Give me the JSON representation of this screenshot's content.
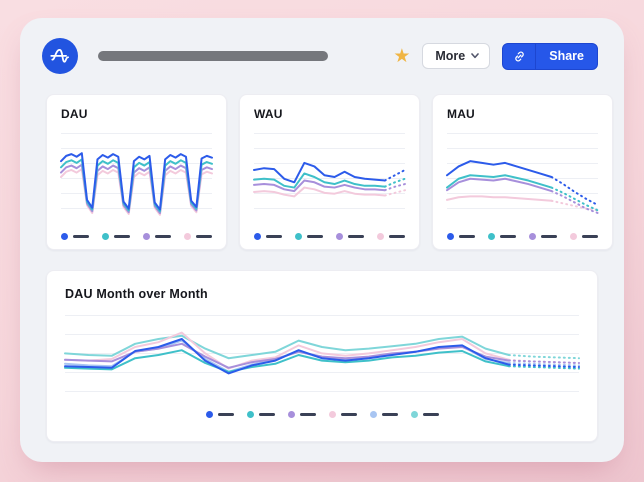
{
  "header": {
    "app_logo": "amplitude-logo",
    "title_placeholder": "redacted-title-bar",
    "star_icon": "★",
    "more_button": {
      "label": "More"
    },
    "share_button": {
      "label": "Share",
      "icon": "link-icon"
    }
  },
  "colors": {
    "accent_blue": "#2c5bea",
    "teal": "#3fc0c9",
    "purple": "#a78fdb",
    "pink": "#f3cadc",
    "light_blue": "#a8c5f2",
    "aqua": "#7fd6d9",
    "star_gold": "#f0b544",
    "share_blue": "#2657e9",
    "page_pink": "#f7d9dd",
    "panel_gray": "#f0f2f6",
    "legend_dash": "#3a4156"
  },
  "chart_data": [
    {
      "type": "line",
      "title": "DAU",
      "xlabel": "",
      "ylabel": "",
      "ylim": [
        0,
        100
      ],
      "grid": true,
      "legend_position": "bottom",
      "dotted_from": null,
      "series": [
        {
          "name": "series-1",
          "color": "#2c5bea",
          "values": [
            68,
            74,
            76,
            73,
            77,
            24,
            15,
            70,
            75,
            72,
            76,
            73,
            22,
            14,
            68,
            73,
            70,
            74,
            21,
            13,
            70,
            75,
            72,
            76,
            73,
            23,
            16,
            71,
            74,
            72
          ]
        },
        {
          "name": "series-2",
          "color": "#3fc0c9",
          "values": [
            61,
            67,
            69,
            66,
            70,
            22,
            13,
            63,
            68,
            65,
            69,
            66,
            20,
            12,
            61,
            66,
            63,
            67,
            19,
            11,
            63,
            68,
            65,
            69,
            66,
            21,
            14,
            64,
            67,
            65
          ]
        },
        {
          "name": "series-3",
          "color": "#a78fdb",
          "values": [
            55,
            61,
            63,
            60,
            64,
            20,
            11,
            57,
            62,
            59,
            63,
            60,
            18,
            10,
            55,
            60,
            57,
            61,
            17,
            9,
            57,
            62,
            59,
            63,
            60,
            19,
            12,
            58,
            61,
            59
          ]
        },
        {
          "name": "series-4",
          "color": "#f3cadc",
          "values": [
            50,
            56,
            58,
            55,
            59,
            18,
            9,
            52,
            57,
            54,
            58,
            55,
            16,
            8,
            50,
            55,
            52,
            56,
            15,
            7,
            52,
            57,
            54,
            58,
            55,
            17,
            10,
            53,
            56,
            54
          ]
        }
      ]
    },
    {
      "type": "line",
      "title": "WAU",
      "xlabel": "",
      "ylabel": "",
      "ylim": [
        0,
        100
      ],
      "grid": true,
      "legend_position": "bottom",
      "dotted_from": 13,
      "series": [
        {
          "name": "series-1",
          "color": "#2c5bea",
          "values": [
            58,
            60,
            59,
            48,
            44,
            66,
            62,
            52,
            50,
            56,
            50,
            48,
            47,
            46,
            52,
            58
          ]
        },
        {
          "name": "series-2",
          "color": "#3fc0c9",
          "values": [
            47,
            48,
            47,
            40,
            38,
            54,
            50,
            44,
            42,
            46,
            42,
            40,
            40,
            39,
            44,
            48
          ]
        },
        {
          "name": "series-3",
          "color": "#a78fdb",
          "values": [
            41,
            42,
            41,
            36,
            34,
            46,
            44,
            39,
            38,
            41,
            38,
            36,
            36,
            35,
            39,
            42
          ]
        },
        {
          "name": "series-4",
          "color": "#f3cadc",
          "values": [
            33,
            34,
            33,
            30,
            28,
            38,
            36,
            32,
            31,
            34,
            31,
            30,
            30,
            29,
            32,
            35
          ]
        }
      ]
    },
    {
      "type": "line",
      "title": "MAU",
      "xlabel": "",
      "ylabel": "",
      "ylim": [
        0,
        100
      ],
      "grid": true,
      "legend_position": "bottom",
      "dotted_from": 9,
      "series": [
        {
          "name": "series-1",
          "color": "#2c5bea",
          "values": [
            52,
            62,
            68,
            66,
            64,
            66,
            62,
            58,
            54,
            50,
            42,
            33,
            25,
            18
          ]
        },
        {
          "name": "series-2",
          "color": "#3fc0c9",
          "values": [
            38,
            48,
            52,
            51,
            50,
            52,
            49,
            46,
            42,
            38,
            32,
            25,
            18,
            12
          ]
        },
        {
          "name": "series-3",
          "color": "#a78fdb",
          "values": [
            35,
            44,
            48,
            47,
            46,
            48,
            45,
            42,
            38,
            34,
            28,
            21,
            14,
            9
          ]
        },
        {
          "name": "series-4",
          "color": "#f3cadc",
          "values": [
            24,
            27,
            28,
            28,
            27,
            27,
            26,
            25,
            24,
            23,
            20,
            17,
            14,
            12
          ]
        }
      ]
    },
    {
      "type": "line",
      "title": "DAU Month over Month",
      "xlabel": "",
      "ylabel": "",
      "ylim": [
        0,
        100
      ],
      "grid": true,
      "legend_position": "bottom",
      "dotted_from": 19,
      "series": [
        {
          "name": "series-1",
          "color": "#2c5bea",
          "values": [
            36,
            35,
            34,
            55,
            60,
            70,
            43,
            27,
            37,
            43,
            56,
            46,
            43,
            46,
            50,
            54,
            60,
            62,
            46,
            38,
            37,
            36,
            35
          ]
        },
        {
          "name": "series-2",
          "color": "#3fc0c9",
          "values": [
            34,
            33,
            32,
            46,
            50,
            56,
            40,
            29,
            35,
            39,
            50,
            43,
            41,
            43,
            47,
            49,
            53,
            55,
            42,
            36,
            35,
            34,
            33
          ]
        },
        {
          "name": "series-3",
          "color": "#a78fdb",
          "values": [
            44,
            43,
            42,
            54,
            58,
            64,
            48,
            34,
            41,
            45,
            54,
            48,
            46,
            48,
            52,
            54,
            58,
            60,
            48,
            43,
            42,
            41,
            40
          ]
        },
        {
          "name": "series-4",
          "color": "#f3cadc",
          "values": [
            44,
            43,
            45,
            60,
            66,
            78,
            52,
            33,
            43,
            47,
            62,
            52,
            49,
            52,
            56,
            60,
            66,
            70,
            52,
            44,
            42,
            41,
            40
          ]
        },
        {
          "name": "series-5",
          "color": "#a8c5f2",
          "values": [
            39,
            37,
            36,
            54,
            58,
            68,
            45,
            29,
            38,
            44,
            55,
            46,
            44,
            47,
            51,
            54,
            59,
            61,
            45,
            40,
            39,
            38,
            37
          ]
        },
        {
          "name": "series-6",
          "color": "#7fd6d9",
          "values": [
            52,
            50,
            49,
            64,
            70,
            74,
            58,
            46,
            50,
            54,
            68,
            60,
            56,
            58,
            61,
            64,
            70,
            73,
            58,
            50,
            48,
            47,
            46
          ]
        }
      ]
    }
  ]
}
